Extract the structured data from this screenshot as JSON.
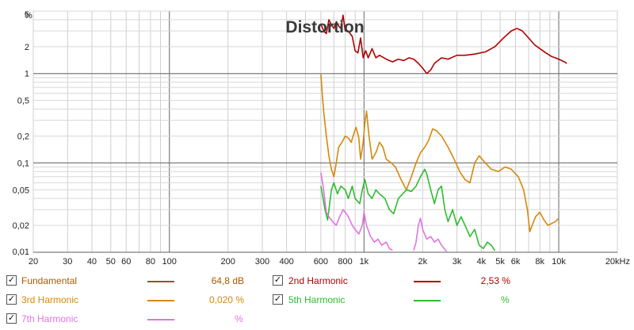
{
  "chart_data": {
    "type": "line",
    "title": "Distortion",
    "x_scale": "log",
    "y_scale": "log",
    "xlim": [
      20,
      20000
    ],
    "ylim": [
      0.01,
      5
    ],
    "grid": true,
    "y_unit_label": "%",
    "x_ticks": [
      {
        "v": 20,
        "label": "20"
      },
      {
        "v": 30,
        "label": "30"
      },
      {
        "v": 40,
        "label": "40"
      },
      {
        "v": 50,
        "label": "50"
      },
      {
        "v": 60,
        "label": "60"
      },
      {
        "v": 80,
        "label": "80"
      },
      {
        "v": 100,
        "label": "100"
      },
      {
        "v": 200,
        "label": "200"
      },
      {
        "v": 300,
        "label": "300"
      },
      {
        "v": 400,
        "label": "400"
      },
      {
        "v": 600,
        "label": "600"
      },
      {
        "v": 800,
        "label": "800"
      },
      {
        "v": 1000,
        "label": "1k"
      },
      {
        "v": 2000,
        "label": "2k"
      },
      {
        "v": 3000,
        "label": "3k"
      },
      {
        "v": 4000,
        "label": "4k"
      },
      {
        "v": 5000,
        "label": "5k"
      },
      {
        "v": 6000,
        "label": "6k"
      },
      {
        "v": 8000,
        "label": "8k"
      },
      {
        "v": 10000,
        "label": "10k"
      },
      {
        "v": 20000,
        "label": "20kHz"
      }
    ],
    "y_ticks": [
      {
        "v": 5,
        "label": "5"
      },
      {
        "v": 2,
        "label": "2"
      },
      {
        "v": 1,
        "label": "1"
      },
      {
        "v": 0.5,
        "label": "0,5"
      },
      {
        "v": 0.2,
        "label": "0,2"
      },
      {
        "v": 0.1,
        "label": "0,1"
      },
      {
        "v": 0.05,
        "label": "0,05"
      },
      {
        "v": 0.02,
        "label": "0,02"
      },
      {
        "v": 0.01,
        "label": "0,01"
      }
    ],
    "series": [
      {
        "name": "Fundamental",
        "color": "#8b5a2b",
        "value": "64,8 dB",
        "points": []
      },
      {
        "name": "2nd Harmonic",
        "color": "#b00000",
        "value": "2,53 %",
        "points": [
          [
            600,
            3.6
          ],
          [
            620,
            3.0
          ],
          [
            640,
            2.8
          ],
          [
            660,
            4.0
          ],
          [
            680,
            3.5
          ],
          [
            700,
            3.2
          ],
          [
            720,
            3.8
          ],
          [
            740,
            3.4
          ],
          [
            760,
            3.2
          ],
          [
            780,
            4.5
          ],
          [
            800,
            3.0
          ],
          [
            830,
            3.0
          ],
          [
            870,
            2.6
          ],
          [
            900,
            1.8
          ],
          [
            930,
            1.7
          ],
          [
            960,
            2.5
          ],
          [
            990,
            1.5
          ],
          [
            1020,
            1.8
          ],
          [
            1050,
            1.5
          ],
          [
            1100,
            1.9
          ],
          [
            1150,
            1.5
          ],
          [
            1200,
            1.6
          ],
          [
            1300,
            1.45
          ],
          [
            1400,
            1.35
          ],
          [
            1500,
            1.45
          ],
          [
            1600,
            1.4
          ],
          [
            1700,
            1.5
          ],
          [
            1800,
            1.45
          ],
          [
            1900,
            1.3
          ],
          [
            2000,
            1.15
          ],
          [
            2100,
            1.0
          ],
          [
            2200,
            1.1
          ],
          [
            2300,
            1.3
          ],
          [
            2500,
            1.5
          ],
          [
            2700,
            1.45
          ],
          [
            3000,
            1.6
          ],
          [
            3300,
            1.6
          ],
          [
            3700,
            1.65
          ],
          [
            4200,
            1.75
          ],
          [
            4700,
            2.0
          ],
          [
            5200,
            2.5
          ],
          [
            5700,
            3.0
          ],
          [
            6100,
            3.2
          ],
          [
            6500,
            3.0
          ],
          [
            7000,
            2.5
          ],
          [
            7500,
            2.1
          ],
          [
            8000,
            1.9
          ],
          [
            8600,
            1.7
          ],
          [
            9200,
            1.55
          ],
          [
            10000,
            1.45
          ],
          [
            10700,
            1.35
          ],
          [
            11000,
            1.3
          ]
        ]
      },
      {
        "name": "3rd Harmonic",
        "color": "#d4890c",
        "value": "0,020 %",
        "points": [
          [
            600,
            0.98
          ],
          [
            610,
            0.6
          ],
          [
            620,
            0.38
          ],
          [
            640,
            0.2
          ],
          [
            660,
            0.12
          ],
          [
            680,
            0.085
          ],
          [
            700,
            0.07
          ],
          [
            720,
            0.1
          ],
          [
            740,
            0.15
          ],
          [
            770,
            0.17
          ],
          [
            800,
            0.2
          ],
          [
            830,
            0.19
          ],
          [
            860,
            0.17
          ],
          [
            890,
            0.22
          ],
          [
            910,
            0.25
          ],
          [
            940,
            0.19
          ],
          [
            960,
            0.11
          ],
          [
            990,
            0.17
          ],
          [
            1010,
            0.28
          ],
          [
            1030,
            0.38
          ],
          [
            1060,
            0.2
          ],
          [
            1100,
            0.11
          ],
          [
            1150,
            0.13
          ],
          [
            1200,
            0.17
          ],
          [
            1250,
            0.15
          ],
          [
            1300,
            0.11
          ],
          [
            1380,
            0.1
          ],
          [
            1450,
            0.09
          ],
          [
            1550,
            0.065
          ],
          [
            1650,
            0.05
          ],
          [
            1750,
            0.07
          ],
          [
            1850,
            0.1
          ],
          [
            1950,
            0.13
          ],
          [
            2050,
            0.15
          ],
          [
            2150,
            0.18
          ],
          [
            2250,
            0.24
          ],
          [
            2350,
            0.23
          ],
          [
            2500,
            0.2
          ],
          [
            2700,
            0.15
          ],
          [
            2900,
            0.11
          ],
          [
            3100,
            0.08
          ],
          [
            3300,
            0.065
          ],
          [
            3500,
            0.06
          ],
          [
            3700,
            0.1
          ],
          [
            3900,
            0.12
          ],
          [
            4200,
            0.1
          ],
          [
            4500,
            0.085
          ],
          [
            4900,
            0.08
          ],
          [
            5300,
            0.09
          ],
          [
            5700,
            0.085
          ],
          [
            6200,
            0.07
          ],
          [
            6600,
            0.05
          ],
          [
            6900,
            0.03
          ],
          [
            7100,
            0.017
          ],
          [
            7300,
            0.02
          ],
          [
            7600,
            0.025
          ],
          [
            8000,
            0.028
          ],
          [
            8400,
            0.023
          ],
          [
            8800,
            0.02
          ],
          [
            9200,
            0.021
          ],
          [
            9600,
            0.022
          ],
          [
            10000,
            0.024
          ]
        ]
      },
      {
        "name": "5th Harmonic",
        "color": "#2ebd2e",
        "value": "",
        "points": [
          [
            600,
            0.055
          ],
          [
            630,
            0.03
          ],
          [
            650,
            0.023
          ],
          [
            680,
            0.05
          ],
          [
            700,
            0.06
          ],
          [
            730,
            0.045
          ],
          [
            760,
            0.055
          ],
          [
            800,
            0.05
          ],
          [
            830,
            0.04
          ],
          [
            870,
            0.055
          ],
          [
            900,
            0.04
          ],
          [
            950,
            0.035
          ],
          [
            980,
            0.05
          ],
          [
            1010,
            0.065
          ],
          [
            1050,
            0.045
          ],
          [
            1100,
            0.04
          ],
          [
            1150,
            0.05
          ],
          [
            1200,
            0.045
          ],
          [
            1280,
            0.04
          ],
          [
            1350,
            0.03
          ],
          [
            1420,
            0.027
          ],
          [
            1500,
            0.04
          ],
          [
            1580,
            0.045
          ],
          [
            1650,
            0.05
          ],
          [
            1750,
            0.048
          ],
          [
            1850,
            0.055
          ],
          [
            1950,
            0.07
          ],
          [
            2050,
            0.085
          ],
          [
            2100,
            0.075
          ],
          [
            2200,
            0.05
          ],
          [
            2300,
            0.035
          ],
          [
            2400,
            0.05
          ],
          [
            2500,
            0.055
          ],
          [
            2600,
            0.03
          ],
          [
            2700,
            0.022
          ],
          [
            2850,
            0.03
          ],
          [
            3000,
            0.02
          ],
          [
            3150,
            0.025
          ],
          [
            3300,
            0.02
          ],
          [
            3500,
            0.015
          ],
          [
            3700,
            0.018
          ],
          [
            3900,
            0.012
          ],
          [
            4100,
            0.011
          ],
          [
            4300,
            0.013
          ],
          [
            4500,
            0.012
          ],
          [
            4700,
            0.0104
          ]
        ]
      },
      {
        "name": "7th Harmonic",
        "color": "#e272e2",
        "value": "",
        "points": [
          [
            600,
            0.078
          ],
          [
            620,
            0.05
          ],
          [
            640,
            0.028
          ],
          [
            660,
            0.025
          ],
          [
            690,
            0.022
          ],
          [
            720,
            0.02
          ],
          [
            750,
            0.025
          ],
          [
            780,
            0.03
          ],
          [
            800,
            0.028
          ],
          [
            830,
            0.025
          ],
          [
            870,
            0.02
          ],
          [
            900,
            0.018
          ],
          [
            940,
            0.016
          ],
          [
            980,
            0.02
          ],
          [
            1000,
            0.028
          ],
          [
            1030,
            0.02
          ],
          [
            1080,
            0.015
          ],
          [
            1130,
            0.013
          ],
          [
            1180,
            0.014
          ],
          [
            1230,
            0.012
          ],
          [
            1300,
            0.013
          ],
          [
            1350,
            0.011
          ],
          [
            1400,
            0.0105
          ]
        ]
      },
      {
        "name": "7th Harmonic",
        "color": "#e272e2",
        "value": "",
        "points": [
          [
            1800,
            0.0105
          ],
          [
            1850,
            0.013
          ],
          [
            1900,
            0.02
          ],
          [
            1950,
            0.024
          ],
          [
            2000,
            0.018
          ],
          [
            2100,
            0.014
          ],
          [
            2200,
            0.015
          ],
          [
            2300,
            0.013
          ],
          [
            2400,
            0.014
          ],
          [
            2500,
            0.012
          ],
          [
            2650,
            0.0102
          ]
        ]
      }
    ]
  },
  "legend": [
    {
      "name": "Fundamental",
      "value": "64,8 dB",
      "checked": "✓"
    },
    {
      "name": "2nd Harmonic",
      "value": "2,53 %",
      "checked": "✓"
    },
    {
      "name": "3rd Harmonic",
      "value": "0,020 %",
      "checked": "✓"
    },
    {
      "name": "5th Harmonic",
      "value": "",
      "unit": "%",
      "checked": "✓"
    },
    {
      "name": "7th Harmonic",
      "value": "",
      "unit": "%",
      "checked": "✓"
    }
  ]
}
